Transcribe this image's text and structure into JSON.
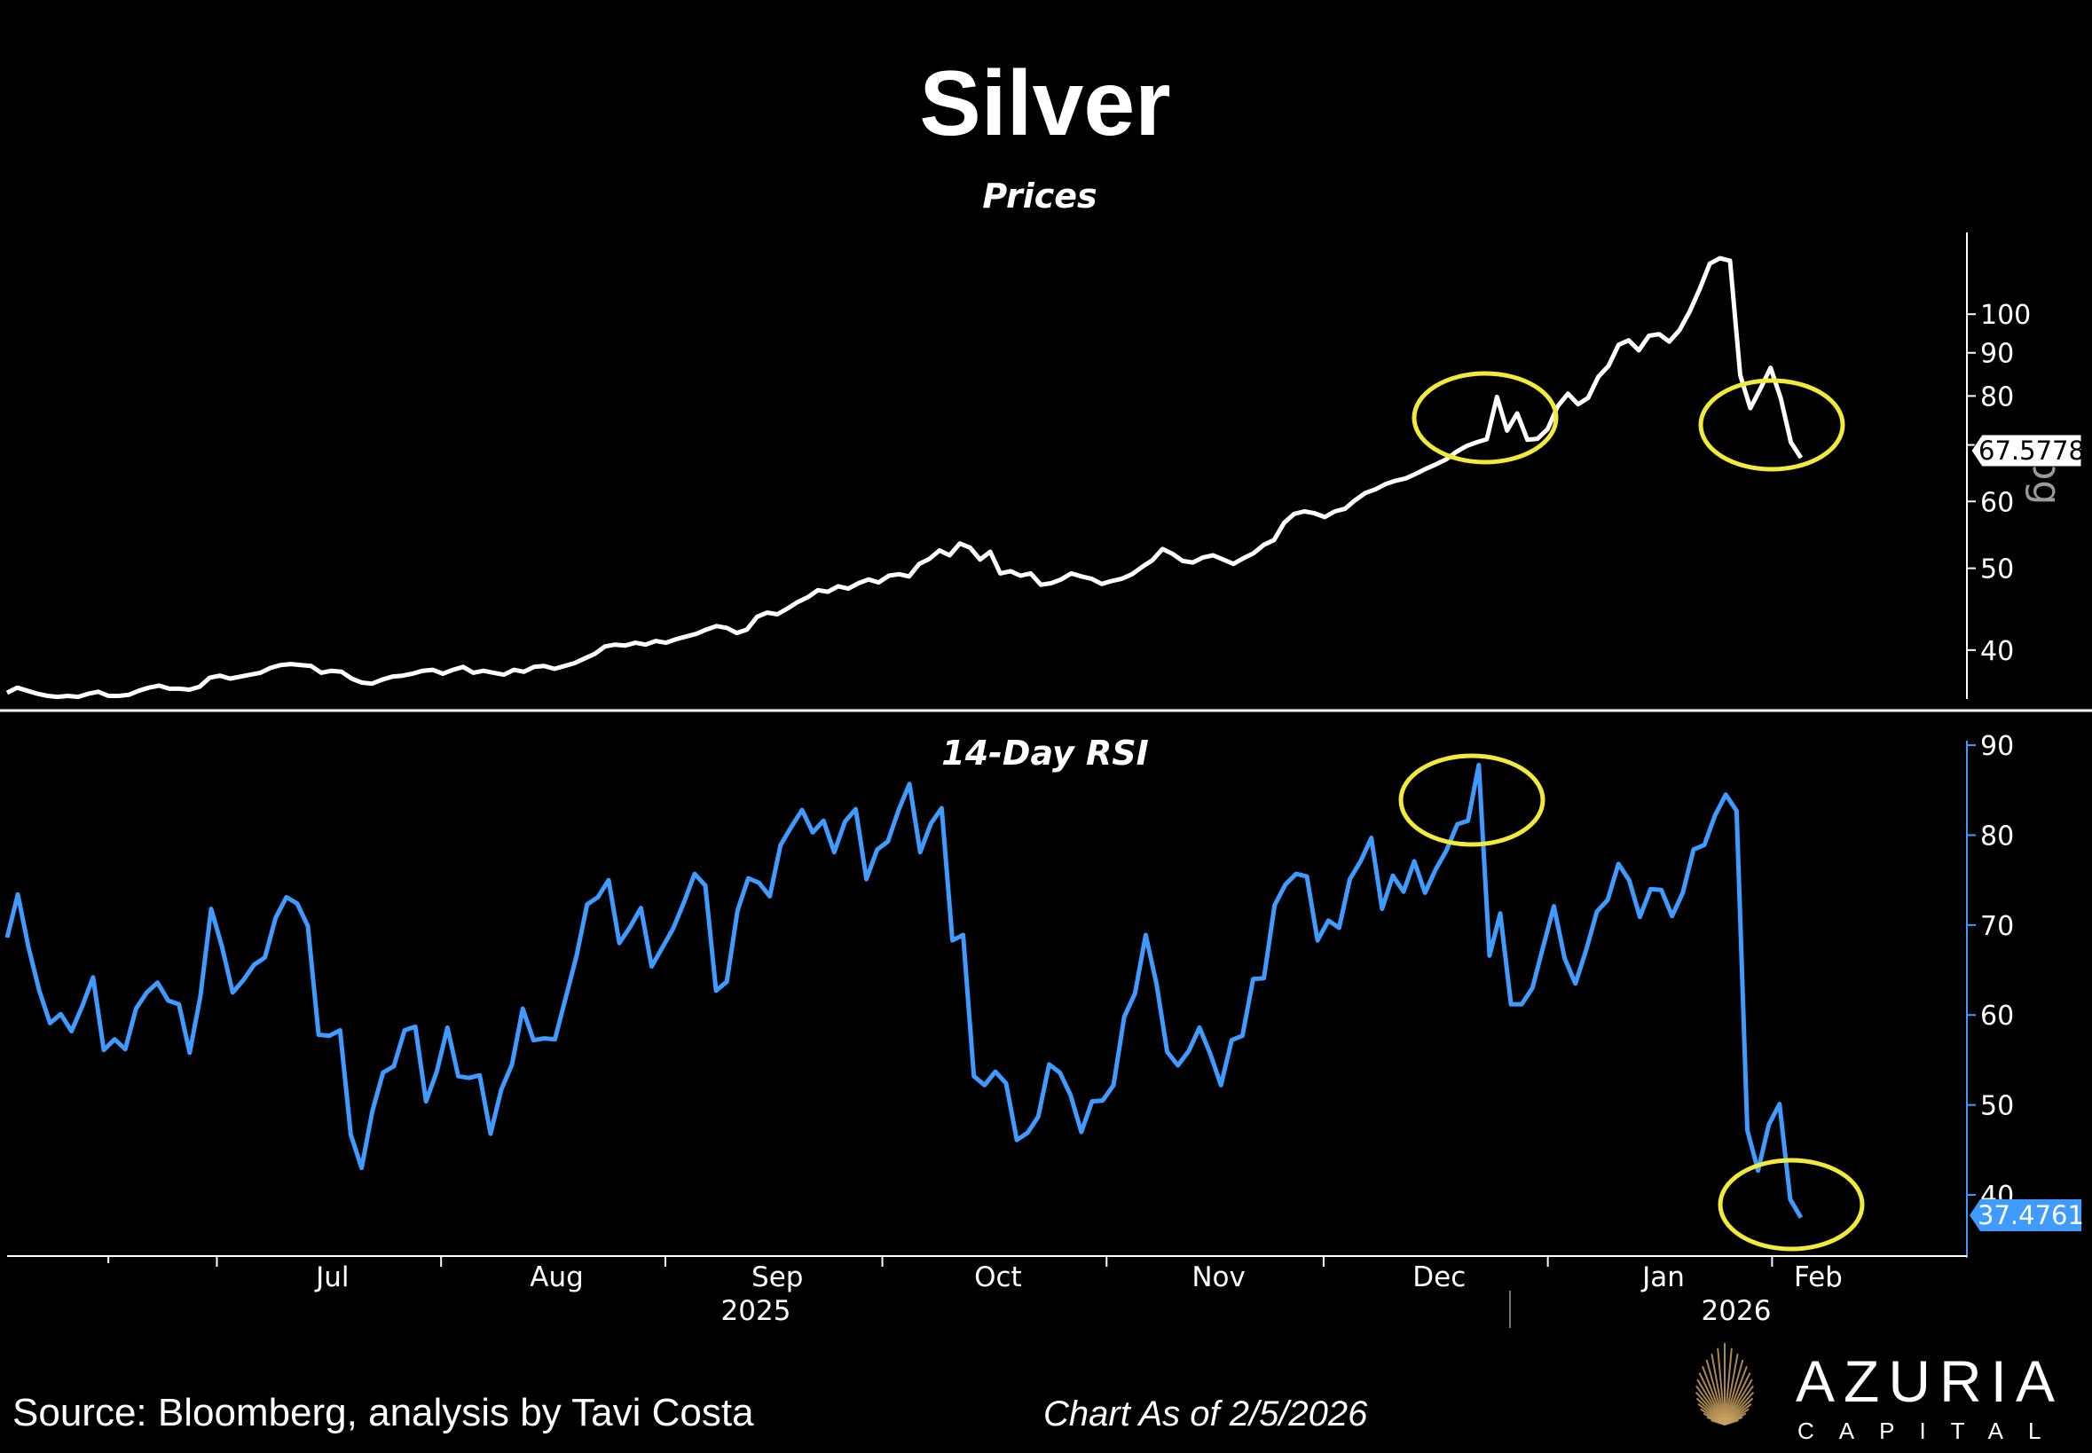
{
  "page": {
    "title": "Silver",
    "footer_source": "Source: Bloomberg, analysis by Tavi Costa",
    "footer_date": "Chart As of 2/5/2026",
    "brand_name": "AZURIA",
    "brand_sub": "CAPITAL"
  },
  "colors": {
    "background": "#000000",
    "price_line": "#ffffff",
    "rsi_line": "#3f9bff",
    "highlight_circle": "#f2ea3a",
    "brand_gold": "#c8a060"
  },
  "chart_data": [
    {
      "type": "line",
      "title": "Prices",
      "scale": "log",
      "axis_tag": "Log",
      "y_ticks": [
        40,
        50,
        60,
        70,
        80,
        90,
        100
      ],
      "ylim": [
        35,
        125
      ],
      "last_value_label": "67.5778",
      "x_start": "2025-06-02",
      "x_end": "2026-02-05",
      "series": [
        {
          "values": [
            35.6,
            36.1,
            35.8,
            35.5,
            35.3,
            35.2,
            35.3,
            35.2,
            35.5,
            35.7,
            35.3,
            35.3,
            35.4,
            35.8,
            36.1,
            36.3,
            36.0,
            36.0,
            35.9,
            36.2,
            37.1,
            37.3,
            37.0,
            37.2,
            37.4,
            37.6,
            38.1,
            38.4,
            38.5,
            38.4,
            38.3,
            37.6,
            37.8,
            37.7,
            37.0,
            36.6,
            36.5,
            36.9,
            37.2,
            37.3,
            37.5,
            37.8,
            37.9,
            37.5,
            37.9,
            38.2,
            37.6,
            37.8,
            37.6,
            37.4,
            37.9,
            37.7,
            38.2,
            38.3,
            38.0,
            38.3,
            38.6,
            39.1,
            39.6,
            40.4,
            40.6,
            40.5,
            40.8,
            40.6,
            41.0,
            40.8,
            41.2,
            41.5,
            41.8,
            42.3,
            42.7,
            42.5,
            41.9,
            42.3,
            43.8,
            44.3,
            44.1,
            44.8,
            45.6,
            46.2,
            47.1,
            46.9,
            47.6,
            47.3,
            48.0,
            48.5,
            48.1,
            49.0,
            49.2,
            48.9,
            50.6,
            51.3,
            52.5,
            51.8,
            53.5,
            52.9,
            51.2,
            52.3,
            49.3,
            49.6,
            49.0,
            49.3,
            47.8,
            48.0,
            48.5,
            49.3,
            48.9,
            48.6,
            47.9,
            48.3,
            48.6,
            49.2,
            50.2,
            51.1,
            52.7,
            52.0,
            51.0,
            50.8,
            51.5,
            51.8,
            51.2,
            50.6,
            51.4,
            52.1,
            53.3,
            54.0,
            56.6,
            58.0,
            58.4,
            58.1,
            57.5,
            58.4,
            58.8,
            60.2,
            61.4,
            62.0,
            62.9,
            63.5,
            63.9,
            64.7,
            65.6,
            66.4,
            67.3,
            68.7,
            69.8,
            70.5,
            71.1,
            79.8,
            72.8,
            76.3,
            71.0,
            71.2,
            73.1,
            77.8,
            80.5,
            78.2,
            79.6,
            84.3,
            86.8,
            92.0,
            93.1,
            90.6,
            94.3,
            94.7,
            92.8,
            95.7,
            100.6,
            107.1,
            114.8,
            116.5,
            115.7,
            84.7,
            77.4,
            81.6,
            86.4,
            79.5,
            70.5,
            67.5778
          ]
        }
      ]
    },
    {
      "type": "line",
      "title": "14-Day RSI",
      "y_ticks": [
        40,
        50,
        60,
        70,
        80,
        90
      ],
      "ylim": [
        33,
        90.5
      ],
      "last_value_label": "37.4761",
      "x_start": "2025-06-02",
      "x_end": "2026-02-05",
      "x_tick_labels": [
        "Jul",
        "Aug",
        "Sep",
        "Oct",
        "Nov",
        "Dec",
        "Jan",
        "Feb"
      ],
      "year_labels": [
        "2025",
        "2026"
      ],
      "series": [
        {
          "values": [
            68.6,
            73.4,
            67.5,
            62.7,
            59.1,
            60.1,
            58.2,
            61.0,
            64.2,
            56.1,
            57.3,
            56.2,
            60.7,
            62.5,
            63.6,
            61.6,
            61.2,
            55.8,
            62.1,
            71.8,
            67.6,
            62.5,
            63.9,
            65.6,
            66.4,
            70.8,
            73.1,
            72.4,
            69.9,
            57.8,
            57.7,
            58.3,
            46.7,
            43.0,
            49.3,
            53.6,
            54.3,
            58.3,
            58.7,
            50.4,
            53.7,
            58.6,
            53.2,
            53.0,
            53.3,
            46.8,
            51.7,
            54.5,
            60.7,
            57.2,
            57.4,
            57.3,
            61.9,
            66.5,
            72.3,
            73.1,
            75.0,
            68.0,
            69.8,
            71.9,
            65.4,
            67.5,
            69.6,
            72.5,
            75.7,
            74.4,
            62.7,
            63.7,
            71.6,
            75.2,
            74.7,
            73.2,
            78.9,
            80.9,
            82.8,
            80.3,
            81.6,
            78.1,
            81.5,
            82.9,
            75.1,
            78.4,
            79.3,
            82.8,
            85.7,
            78.1,
            81.3,
            83.0,
            68.3,
            68.9,
            53.2,
            52.2,
            53.7,
            52.4,
            46.1,
            46.9,
            48.7,
            54.5,
            53.6,
            51.1,
            47.0,
            50.4,
            50.5,
            52.2,
            59.8,
            62.4,
            68.9,
            63.5,
            55.9,
            54.4,
            56.0,
            58.6,
            55.7,
            52.2,
            57.2,
            57.7,
            64.0,
            64.1,
            72.2,
            74.5,
            75.7,
            75.4,
            68.3,
            70.5,
            69.7,
            75.1,
            77.1,
            79.7,
            71.8,
            75.5,
            73.7,
            77.1,
            73.6,
            76.2,
            78.3,
            81.2,
            81.6,
            87.8,
            66.6,
            71.3,
            61.2,
            61.2,
            63.0,
            67.6,
            72.1,
            66.3,
            63.5,
            67.2,
            71.5,
            72.8,
            76.8,
            75.0,
            70.9,
            74.0,
            73.9,
            71.0,
            73.6,
            78.4,
            78.9,
            82.2,
            84.5,
            82.7,
            47.2,
            42.7,
            47.8,
            50.1,
            39.5,
            37.4761
          ]
        }
      ]
    }
  ]
}
